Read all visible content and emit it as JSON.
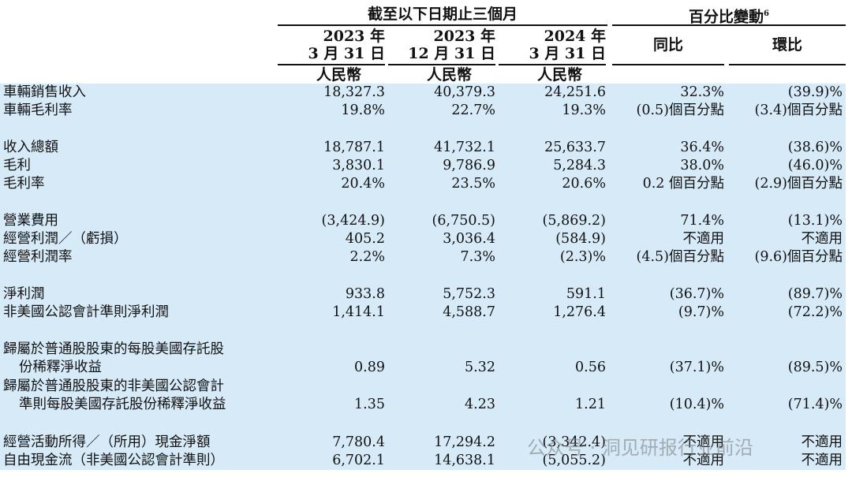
{
  "header": {
    "period_group": "截至以下日期止三個月",
    "change_group": "百分比變動",
    "change_footnote": "6",
    "col1_year": "2023 年",
    "col1_date": "3 月 31 日",
    "col2_year": "2023 年",
    "col2_date": "12 月 31 日",
    "col3_year": "2024 年",
    "col3_date": "3 月 31 日",
    "currency": "人民幣",
    "yoy": "同比",
    "qoq": "環比"
  },
  "rows": [
    {
      "label": "車輛銷售收入",
      "v1": "18,327.3",
      "v2": "40,379.3",
      "v3": "24,251.6",
      "yoy": "32.3%",
      "qoq": "(39.9)%"
    },
    {
      "label": "車輛毛利率",
      "v1": "19.8%",
      "v2": "22.7%",
      "v3": "19.3%",
      "yoy": "(0.5)個百分點",
      "qoq": "(3.4)個百分點"
    },
    {
      "label": "收入總額",
      "v1": "18,787.1",
      "v2": "41,732.1",
      "v3": "25,633.7",
      "yoy": "36.4%",
      "qoq": "(38.6)%"
    },
    {
      "label": "毛利",
      "v1": "3,830.1",
      "v2": "9,786.9",
      "v3": "5,284.3",
      "yoy": "38.0%",
      "qoq": "(46.0)%"
    },
    {
      "label": "毛利率",
      "v1": "20.4%",
      "v2": "23.5%",
      "v3": "20.6%",
      "yoy": "0.2 個百分點",
      "qoq": "(2.9)個百分點"
    },
    {
      "label": "營業費用",
      "v1": "(3,424.9)",
      "v2": "(6,750.5)",
      "v3": "(5,869.2)",
      "yoy": "71.4%",
      "qoq": "(13.1)%"
    },
    {
      "label": "經營利潤／（虧損）",
      "v1": "405.2",
      "v2": "3,036.4",
      "v3": "(584.9)",
      "yoy": "不適用",
      "qoq": "不適用"
    },
    {
      "label": "經營利潤率",
      "v1": "2.2%",
      "v2": "7.3%",
      "v3": "(2.3)%",
      "yoy": "(4.5)個百分點",
      "qoq": "(9.6)個百分點"
    },
    {
      "label": "淨利潤",
      "v1": "933.8",
      "v2": "5,752.3",
      "v3": "591.1",
      "yoy": "(36.7)%",
      "qoq": "(89.7)%"
    },
    {
      "label": "非美國公認會計準則淨利潤",
      "v1": "1,414.1",
      "v2": "4,588.7",
      "v3": "1,276.4",
      "yoy": "(9.7)%",
      "qoq": "(72.2)%"
    },
    {
      "label": "歸屬於普通股股東的每股美國存託股",
      "label2": "份稀釋淨收益",
      "v1": "0.89",
      "v2": "5.32",
      "v3": "0.56",
      "yoy": "(37.1)%",
      "qoq": "(89.5)%"
    },
    {
      "label": "歸屬於普通股股東的非美國公認會計",
      "label2": "準則每股美國存託股份稀釋淨收益",
      "v1": "1.35",
      "v2": "4.23",
      "v3": "1.21",
      "yoy": "(10.4)%",
      "qoq": "(71.4)%"
    },
    {
      "label": "經營活動所得／（所用）現金淨額",
      "v1": "7,780.4",
      "v2": "17,294.2",
      "v3": "(3,342.4)",
      "yoy": "不適用",
      "qoq": "不適用"
    },
    {
      "label": "自由現金流（非美國公認會計準則）",
      "v1": "6,702.1",
      "v2": "14,638.1",
      "v3": "(5,055.2)",
      "yoy": "不適用",
      "qoq": "不適用"
    }
  ],
  "watermark": "公众号 · 洞见研报行业前沿",
  "colors": {
    "band": "#d6eaf8",
    "text": "#111111"
  }
}
